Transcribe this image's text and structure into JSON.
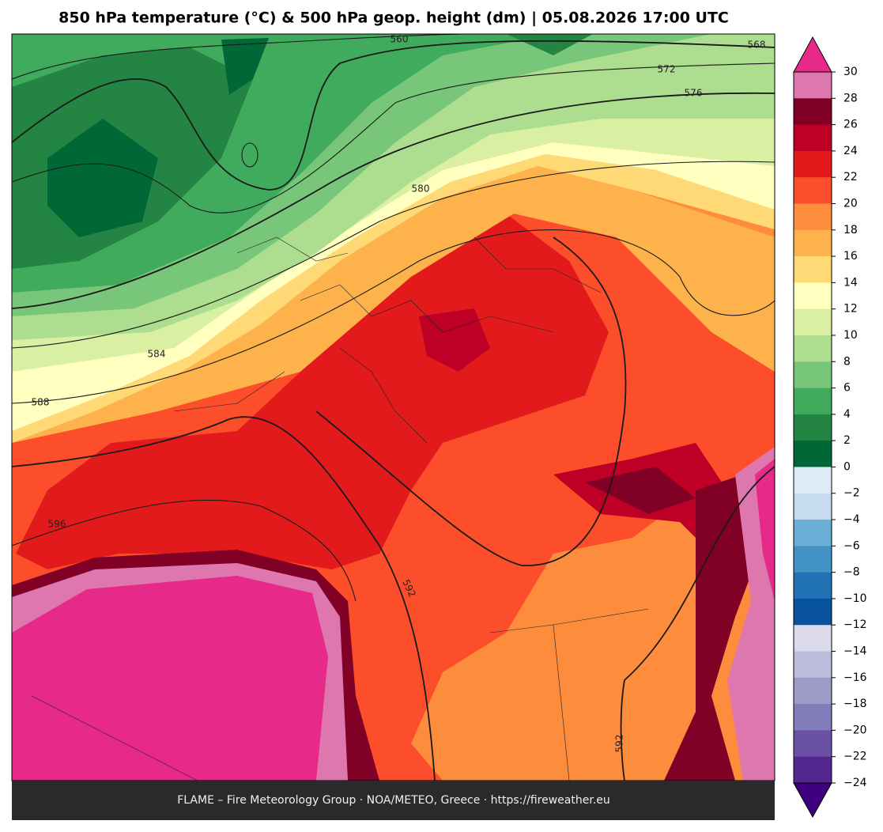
{
  "header": {
    "title": "850 hPa temperature (°C) & 500 hPa geop. height (dm)  |  05.08.2026 17:00 UTC"
  },
  "contour_labels": [
    560,
    568,
    572,
    576,
    580,
    584,
    588,
    592,
    596,
    592
  ],
  "colorbar": {
    "ticks": [
      30,
      28,
      26,
      24,
      22,
      20,
      18,
      16,
      14,
      12,
      10,
      8,
      6,
      4,
      2,
      0,
      {
        "value": -2,
        "label": "−2"
      },
      {
        "value": -4,
        "label": "−4"
      },
      {
        "value": -6,
        "label": "−6"
      },
      {
        "value": -8,
        "label": "−8"
      },
      {
        "value": -10,
        "label": "−10"
      },
      {
        "value": -12,
        "label": "−12"
      },
      {
        "value": -14,
        "label": "−14"
      },
      {
        "value": -16,
        "label": "−16"
      },
      {
        "value": -18,
        "label": "−18"
      },
      {
        "value": -20,
        "label": "−20"
      },
      {
        "value": -22,
        "label": "−22"
      },
      {
        "value": -24,
        "label": "−24"
      }
    ],
    "colors": [
      "#de77ae",
      "#800026",
      "#be0026",
      "#e31a1c",
      "#fc4e2a",
      "#fd8d3c",
      "#feb24c",
      "#fed976",
      "#ffffc0",
      "#d9f0a3",
      "#addd8e",
      "#78c679",
      "#41ab5d",
      "#238443",
      "#006837",
      "#deebf7",
      "#c6dbef",
      "#6baed6",
      "#4292c6",
      "#2171b5",
      "#08519c",
      "#dadaeb",
      "#bcbddc",
      "#9e9ac8",
      "#807dba",
      "#6a51a3",
      "#54278f"
    ],
    "over_color": "#e7298a",
    "under_color": "#3f007d"
  },
  "footer": {
    "credit": "FLAME – Fire Meteorology Group · NOA/METEO, Greece · https://fireweather.eu"
  }
}
